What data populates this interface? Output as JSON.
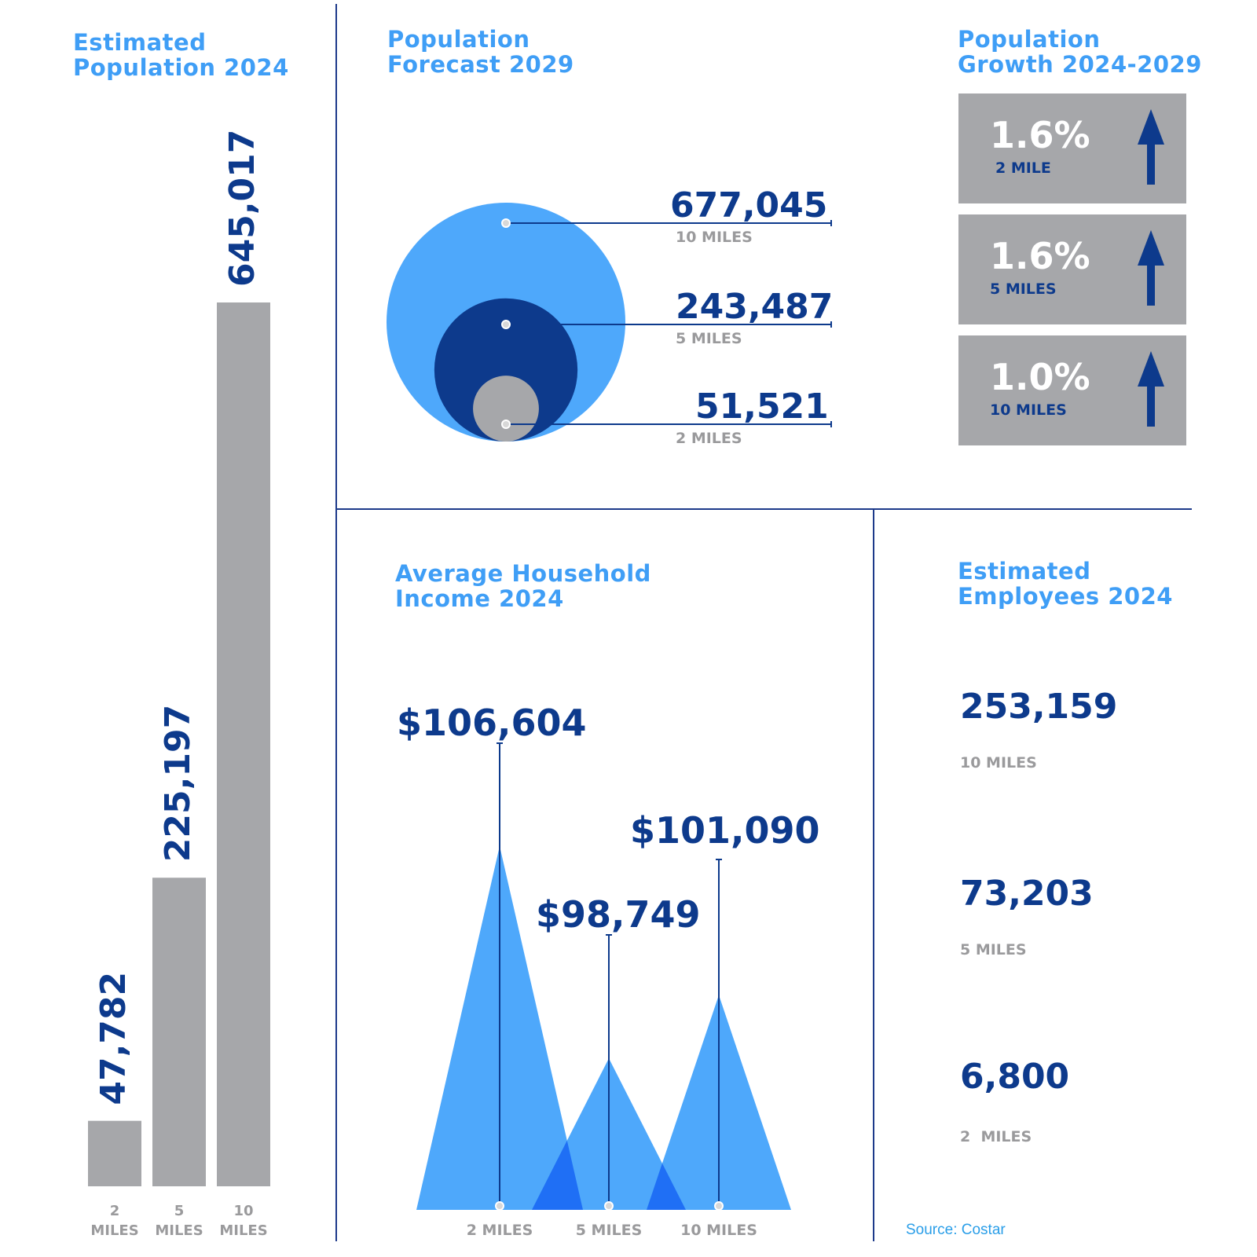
{
  "colors": {
    "dark_blue": "#0d3a8c",
    "light_blue": "#4ea8fb",
    "title_blue": "#3f9ef6",
    "gray": "#a6a7aa",
    "overlap_blue": "#1f6ff5"
  },
  "panels": {
    "pop24_title_l1": "Estimated",
    "pop24_title_l2": "Population 2024",
    "forecast_title_l1": "Population",
    "forecast_title_l2": "Forecast 2029",
    "growth_title_l1": "Population",
    "growth_title_l2": "Growth 2024-2029",
    "income_title_l1": "Average Household",
    "income_title_l2": "Income 2024",
    "employees_title_l1": "Estimated",
    "employees_title_l2": "Employees 2024"
  },
  "growth": [
    {
      "pct": "1.6%",
      "label": "2 MILE",
      "icon": "up-arrow-icon"
    },
    {
      "pct": "1.6%",
      "label": "5 MILES",
      "icon": "up-arrow-icon"
    },
    {
      "pct": "1.0%",
      "label": "10 MILES",
      "icon": "up-arrow-icon"
    }
  ],
  "employees": [
    {
      "value": "253,159",
      "label": "10 MILES"
    },
    {
      "value": "73,203",
      "label": "5 MILES"
    },
    {
      "value": "6,800",
      "label": "2  MILES"
    }
  ],
  "source": "Source: Costar",
  "chart_data": [
    {
      "type": "bar",
      "title": "Estimated Population 2024",
      "categories": [
        [
          "2",
          "MILES"
        ],
        [
          "5",
          "MILES"
        ],
        [
          "10",
          "MILES"
        ]
      ],
      "values": [
        47782,
        225197,
        645017
      ],
      "value_labels": [
        "47,782",
        "225,197",
        "645,017"
      ],
      "ylim": [
        0,
        645017
      ]
    },
    {
      "type": "bubble",
      "title": "Population Forecast 2029",
      "categories": [
        "10 MILES",
        "5 MILES",
        "2 MILES"
      ],
      "values": [
        677045,
        243487,
        51521
      ],
      "value_labels": [
        "677,045",
        "243,487",
        "51,521"
      ]
    },
    {
      "type": "area",
      "title": "Average Household Income 2024",
      "categories": [
        "2 MILES",
        "5 MILES",
        "10 MILES"
      ],
      "values": [
        106604,
        98749,
        101090
      ],
      "value_labels": [
        "$106,604",
        "$98,749",
        "$101,090"
      ]
    }
  ]
}
